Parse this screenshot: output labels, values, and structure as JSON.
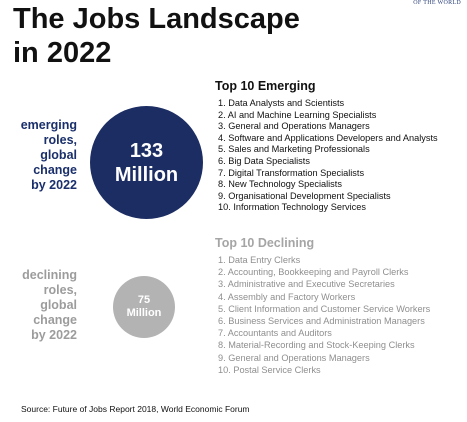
{
  "title_line1": "The Jobs Landscape",
  "title_line2": "in 2022",
  "corner_text": "OF THE WORLD",
  "emerging": {
    "side_label": [
      "emerging",
      "roles,",
      "global",
      "change",
      "by 2022"
    ],
    "circle_value": "133",
    "circle_unit": "Million",
    "heading": "Top 10 Emerging",
    "items": [
      "1. Data Analysts and Scientists",
      "2. AI and Machine Learning Specialists",
      "3. General and Operations Managers",
      "4. Software and Applications Developers and Analysts",
      "5. Sales and Marketing Professionals",
      "6. Big Data Specialists",
      "7. Digital Transformation Specialists",
      "8. New Technology Specialists",
      "9. Organisational Development Specialists",
      "10. Information Technology Services"
    ],
    "color": "#1c2d63"
  },
  "declining": {
    "side_label": [
      "declining",
      "roles,",
      "global",
      "change",
      "by 2022"
    ],
    "circle_value": "75",
    "circle_unit": "Million",
    "heading": "Top 10 Declining",
    "items": [
      "1. Data Entry Clerks",
      "2. Accounting, Bookkeeping and Payroll Clerks",
      "3. Administrative and Executive Secretaries",
      "4. Assembly and Factory Workers",
      "5. Client Information and Customer Service Workers",
      "6. Business Services and Administration Managers",
      "7. Accountants and Auditors",
      "8. Material-Recording and Stock-Keeping Clerks",
      "9. General and Operations Managers",
      "10. Postal Service Clerks"
    ],
    "color": "#b3b3b3"
  },
  "source": "Source: Future of Jobs Report 2018, World Economic Forum"
}
